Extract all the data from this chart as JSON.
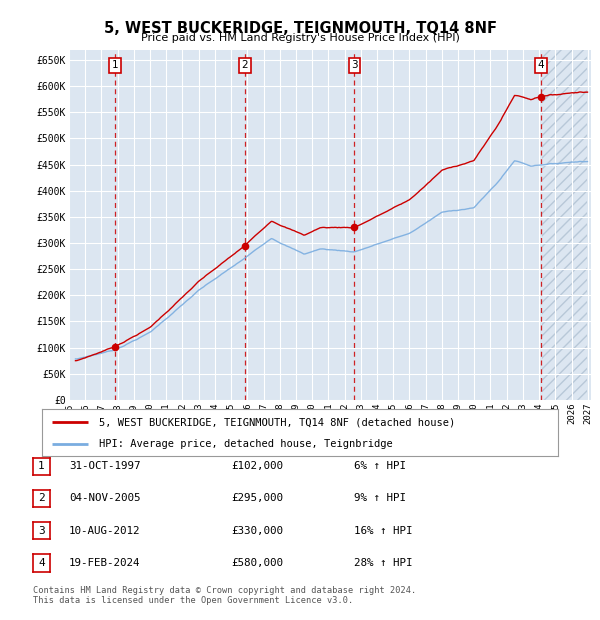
{
  "title": "5, WEST BUCKERIDGE, TEIGNMOUTH, TQ14 8NF",
  "subtitle": "Price paid vs. HM Land Registry's House Price Index (HPI)",
  "ylim": [
    0,
    670000
  ],
  "yticks": [
    0,
    50000,
    100000,
    150000,
    200000,
    250000,
    300000,
    350000,
    400000,
    450000,
    500000,
    550000,
    600000,
    650000
  ],
  "xlim_start": 1995.3,
  "xlim_end": 2027.2,
  "xticks": [
    1995,
    1996,
    1997,
    1998,
    1999,
    2000,
    2001,
    2002,
    2003,
    2004,
    2005,
    2006,
    2007,
    2008,
    2009,
    2010,
    2011,
    2012,
    2013,
    2014,
    2015,
    2016,
    2017,
    2018,
    2019,
    2020,
    2021,
    2022,
    2023,
    2024,
    2025,
    2026,
    2027
  ],
  "background_color": "#ffffff",
  "plot_bg_color": "#dce6f1",
  "grid_color": "#ffffff",
  "hpi_line_color": "#7aade0",
  "price_line_color": "#cc0000",
  "sale_marker_color": "#cc0000",
  "transactions": [
    {
      "num": 1,
      "date": 1997.83,
      "price": 102000,
      "label": "31-OCT-1997",
      "price_str": "£102,000",
      "pct": "6%",
      "dir": "↑"
    },
    {
      "num": 2,
      "date": 2005.84,
      "price": 295000,
      "label": "04-NOV-2005",
      "price_str": "£295,000",
      "pct": "9%",
      "dir": "↑"
    },
    {
      "num": 3,
      "date": 2012.61,
      "price": 330000,
      "label": "10-AUG-2012",
      "price_str": "£330,000",
      "pct": "16%",
      "dir": "↑"
    },
    {
      "num": 4,
      "date": 2024.12,
      "price": 580000,
      "label": "19-FEB-2024",
      "price_str": "£580,000",
      "pct": "28%",
      "dir": "↑"
    }
  ],
  "legend_red_label": "5, WEST BUCKERIDGE, TEIGNMOUTH, TQ14 8NF (detached house)",
  "legend_blue_label": "HPI: Average price, detached house, Teignbridge",
  "footer_text": "Contains HM Land Registry data © Crown copyright and database right 2024.\nThis data is licensed under the Open Government Licence v3.0."
}
